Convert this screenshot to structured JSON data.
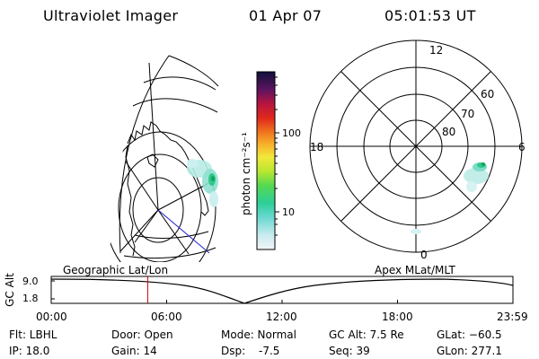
{
  "header": {
    "title": "Ultraviolet Imager",
    "date": "01 Apr 07",
    "time": "05:01:53 UT"
  },
  "colorbar": {
    "unit_label": "photon cm⁻²s⁻¹",
    "ticks": [
      "100",
      "10"
    ]
  },
  "polar": {
    "mlt_labels": [
      "12",
      "18",
      "6",
      "0"
    ],
    "lat_labels": [
      "60",
      "70",
      "80"
    ]
  },
  "map_labels": {
    "left": "Geographic Lat/Lon",
    "right": "Apex MLat/MLT"
  },
  "altitude": {
    "axis_title": "GC Alt",
    "y_ticks": [
      "9.0",
      "1.8"
    ],
    "x_ticks": [
      "00:00",
      "06:00",
      "12:00",
      "18:00",
      "23:59"
    ],
    "current_time_fraction": 0.209
  },
  "status": {
    "flt": "Flt: LBHL",
    "ip": "IP: 18.0",
    "door": "Door: Open",
    "gain": "Gain: 14",
    "mode": "Mode: Normal",
    "dsp_label": "Dsp:",
    "dsp_value": "-7.5",
    "gc_alt": "GC Alt: 7.5 Re",
    "seq": "Seq: 39",
    "glat": "GLat: −60.5",
    "glon": "GLon: 277.1"
  },
  "colors": {
    "foreground": "#000000",
    "time_marker": "#d40000",
    "tangent_line": "#2222cc"
  }
}
